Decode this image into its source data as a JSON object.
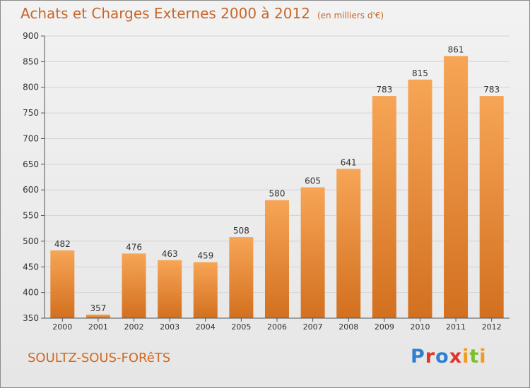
{
  "header": {
    "title": "Achats et Charges Externes 2000 à 2012",
    "unit": "(en milliers d'€)"
  },
  "footer": {
    "city": "SOULTZ-SOUS-FORêTS",
    "logo": "Proxiti"
  },
  "colors": {
    "bar_top": "#f7a556",
    "bar_bottom": "#d2701f",
    "title": "#c8662a",
    "grid": "#d4d4d4"
  },
  "chart_data": {
    "type": "bar",
    "categories": [
      "2000",
      "2001",
      "2002",
      "2003",
      "2004",
      "2005",
      "2006",
      "2007",
      "2008",
      "2009",
      "2010",
      "2011",
      "2012"
    ],
    "values": [
      482,
      357,
      476,
      463,
      459,
      508,
      580,
      605,
      641,
      783,
      815,
      861,
      783
    ],
    "ylim": [
      350,
      900
    ],
    "yticks": [
      350,
      400,
      450,
      500,
      550,
      600,
      650,
      700,
      750,
      800,
      850,
      900
    ],
    "grid": true,
    "data_labels": true
  }
}
